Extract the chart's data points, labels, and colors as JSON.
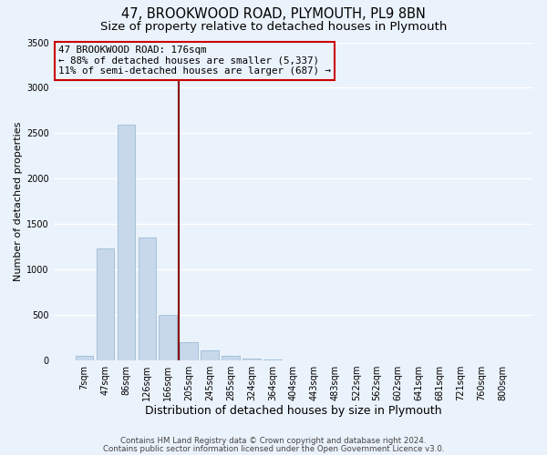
{
  "title": "47, BROOKWOOD ROAD, PLYMOUTH, PL9 8BN",
  "subtitle": "Size of property relative to detached houses in Plymouth",
  "xlabel": "Distribution of detached houses by size in Plymouth",
  "ylabel": "Number of detached properties",
  "bar_labels": [
    "7sqm",
    "47sqm",
    "86sqm",
    "126sqm",
    "166sqm",
    "205sqm",
    "245sqm",
    "285sqm",
    "324sqm",
    "364sqm",
    "404sqm",
    "443sqm",
    "483sqm",
    "522sqm",
    "562sqm",
    "602sqm",
    "641sqm",
    "681sqm",
    "721sqm",
    "760sqm",
    "800sqm"
  ],
  "bar_values": [
    50,
    1230,
    2590,
    1350,
    500,
    200,
    110,
    50,
    20,
    5,
    2,
    1,
    1,
    0,
    0,
    0,
    0,
    0,
    0,
    0,
    0
  ],
  "bar_color": "#c8d8eb",
  "bar_edgecolor": "#90b4d0",
  "vline_x_idx": 4.5,
  "vline_color": "#880000",
  "ylim": [
    0,
    3500
  ],
  "yticks": [
    0,
    500,
    1000,
    1500,
    2000,
    2500,
    3000,
    3500
  ],
  "annotation_title": "47 BROOKWOOD ROAD: 176sqm",
  "annotation_line1": "← 88% of detached houses are smaller (5,337)",
  "annotation_line2": "11% of semi-detached houses are larger (687) →",
  "annotation_box_edgecolor": "#cc0000",
  "footer1": "Contains HM Land Registry data © Crown copyright and database right 2024.",
  "footer2": "Contains public sector information licensed under the Open Government Licence v3.0.",
  "bg_color": "#eaf2fb",
  "plot_bg_color": "#eaf2fb",
  "grid_color": "#ffffff",
  "title_fontsize": 10.5,
  "subtitle_fontsize": 9.5,
  "xlabel_fontsize": 9,
  "ylabel_fontsize": 8,
  "tick_fontsize": 7,
  "ann_fontsize": 7.8,
  "footer_fontsize": 6.2
}
